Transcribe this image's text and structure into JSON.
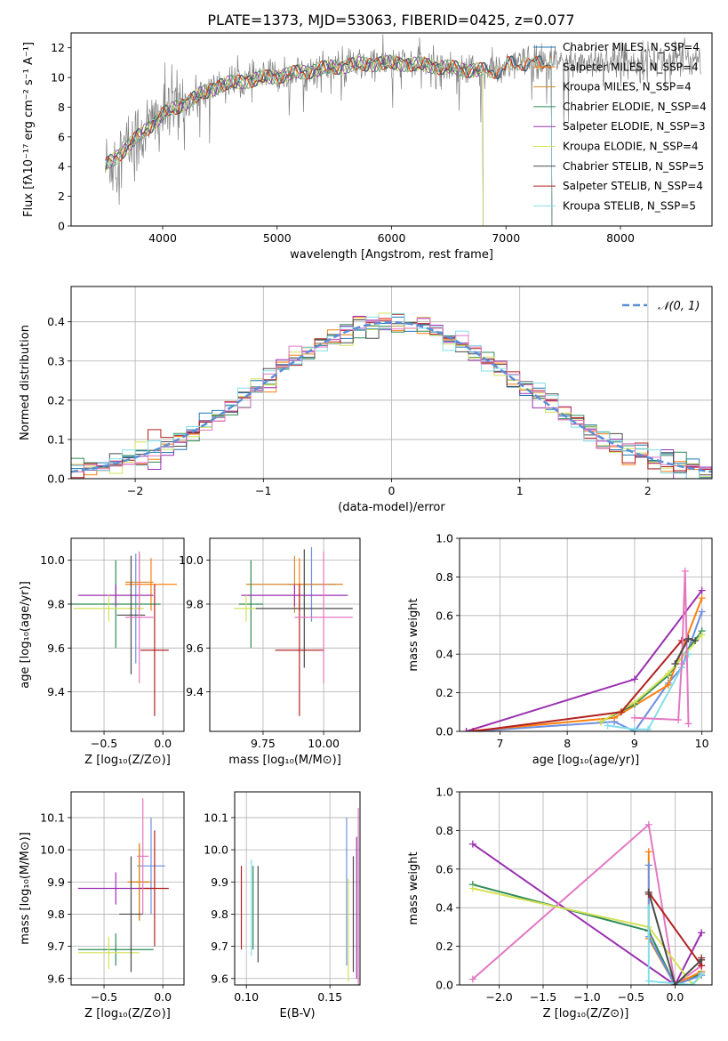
{
  "figure": {
    "title": "PLATE=1373, MJD=53063, FIBERID=0425, z=0.077"
  },
  "chart_data": [
    {
      "type": "line",
      "id": "spectrum",
      "xlabel": "wavelength [Angstrom, rest frame]",
      "ylabel": "Flux [fλ10⁻¹⁷ erg cm⁻² s⁻¹ A⁻¹]",
      "xlim": [
        3200,
        8800
      ],
      "ylim": [
        0,
        13
      ],
      "xticks": [
        4000,
        5000,
        6000,
        7000,
        8000
      ],
      "yticks": [
        0,
        2,
        4,
        6,
        8,
        10,
        12
      ],
      "legend": "upper-right",
      "series": [
        {
          "name": "Chabrier MILES, N_SSP=4",
          "color": "#1f77b4",
          "end": 7400
        },
        {
          "name": "Salpeter MILES, N_SSP=4",
          "color": "#ff7f0e",
          "end": 7400
        },
        {
          "name": "Kroupa MILES, N_SSP=4",
          "color": "#d68a2a",
          "end": 7400
        },
        {
          "name": "Chabrier ELODIE, N_SSP=4",
          "color": "#2e8b57",
          "end": 6800
        },
        {
          "name": "Salpeter ELODIE, N_SSP=3",
          "color": "#9b30b0",
          "end": 6800
        },
        {
          "name": "Kroupa ELODIE, N_SSP=4",
          "color": "#d4e157",
          "end": 6800
        },
        {
          "name": "Chabrier STELIB, N_SSP=5",
          "color": "#4a4a4a",
          "end": 7400
        },
        {
          "name": "Salpeter STELIB, N_SSP=4",
          "color": "#b22222",
          "end": 7400
        },
        {
          "name": "Kroupa STELIB, N_SSP=5",
          "color": "#80deea",
          "end": 7400
        }
      ],
      "data_color": "#808080",
      "data_range": [
        3500,
        8700
      ]
    },
    {
      "type": "histogram",
      "id": "residuals",
      "xlabel": "(data-model)/error",
      "ylabel": "Normed distribution",
      "xlim": [
        -2.5,
        2.5
      ],
      "ylim": [
        0,
        0.49
      ],
      "xticks": [
        -2,
        -1,
        0,
        1,
        2
      ],
      "yticks": [
        0.0,
        0.1,
        0.2,
        0.3,
        0.4
      ],
      "grid": true,
      "legend": "upper-right",
      "reference_label": "𝒩(0, 1)",
      "reference_color": "#5b8fd6"
    },
    {
      "type": "scatter",
      "id": "age-vs-z",
      "xlabel": "Z [log₁₀(Z/Z⊙)]",
      "ylabel": "age  [log₁₀(age/yr)]",
      "xlim": [
        -0.78,
        0.18
      ],
      "ylim": [
        9.22,
        10.1
      ],
      "xticks": [
        -0.5,
        0.0
      ],
      "yticks": [
        9.4,
        9.6,
        9.8,
        10.0
      ],
      "grid": true,
      "points": [
        {
          "x": -0.23,
          "y": 9.78,
          "xerr": 0.05,
          "yerr": 0.25,
          "color": "#6d8fe0"
        },
        {
          "x": -0.1,
          "y": 9.89,
          "xerr": 0.22,
          "yerr": 0.12,
          "color": "#ff7f0e"
        },
        {
          "x": -0.2,
          "y": 9.9,
          "xerr": 0.12,
          "yerr": 0.13,
          "color": "#d68a2a"
        },
        {
          "x": -0.4,
          "y": 9.8,
          "xerr": 0.38,
          "yerr": 0.2,
          "color": "#2e8b57"
        },
        {
          "x": -0.4,
          "y": 9.84,
          "xerr": 0.32,
          "yerr": 0.05,
          "color": "#9b30b0"
        },
        {
          "x": -0.46,
          "y": 9.78,
          "xerr": 0.3,
          "yerr": 0.06,
          "color": "#d4e157"
        },
        {
          "x": -0.27,
          "y": 9.75,
          "xerr": 0.12,
          "yerr": 0.27,
          "color": "#4a4a4a"
        },
        {
          "x": -0.07,
          "y": 9.59,
          "xerr": 0.12,
          "yerr": 0.3,
          "color": "#b22222"
        },
        {
          "x": -0.2,
          "y": 9.74,
          "xerr": 0.12,
          "yerr": 0.3,
          "color": "#e377c2"
        }
      ]
    },
    {
      "type": "scatter",
      "id": "age-vs-mass",
      "xlabel": "mass [log₁₀(M/M⊙)]",
      "ylabel": "",
      "xlim": [
        9.53,
        10.15
      ],
      "ylim": [
        9.22,
        10.1
      ],
      "xticks": [
        9.75,
        10.0
      ],
      "yticks": [
        9.4,
        9.6,
        9.8,
        10.0
      ],
      "grid": true,
      "points": [
        {
          "x": 9.95,
          "y": 9.89,
          "xerr": 0.1,
          "yerr": 0.17,
          "color": "#6d8fe0"
        },
        {
          "x": 9.9,
          "y": 9.89,
          "xerr": 0.02,
          "yerr": 0.12,
          "color": "#ff7f0e"
        },
        {
          "x": 9.88,
          "y": 9.89,
          "xerr": 0.2,
          "yerr": 0.13,
          "color": "#d68a2a"
        },
        {
          "x": 9.7,
          "y": 9.8,
          "xerr": 0.05,
          "yerr": 0.2,
          "color": "#2e8b57"
        },
        {
          "x": 9.88,
          "y": 9.84,
          "xerr": 0.22,
          "yerr": 0.05,
          "color": "#9b30b0"
        },
        {
          "x": 9.68,
          "y": 9.78,
          "xerr": 0.05,
          "yerr": 0.06,
          "color": "#d4e157"
        },
        {
          "x": 9.92,
          "y": 9.78,
          "xerr": 0.2,
          "yerr": 0.27,
          "color": "#4a4a4a"
        },
        {
          "x": 9.9,
          "y": 9.59,
          "xerr": 0.1,
          "yerr": 0.3,
          "color": "#b22222"
        },
        {
          "x": 10.0,
          "y": 9.74,
          "xerr": 0.12,
          "yerr": 0.3,
          "color": "#e377c2"
        }
      ]
    },
    {
      "type": "line",
      "id": "weight-vs-age",
      "xlabel": "age  [log₁₀(age/yr)]",
      "ylabel": "mass weight",
      "xlim": [
        6.4,
        10.15
      ],
      "ylim": [
        0,
        1.0
      ],
      "xticks": [
        7,
        8,
        9,
        10
      ],
      "yticks": [
        0.0,
        0.2,
        0.4,
        0.6,
        0.8,
        1.0
      ],
      "grid": true,
      "series": [
        {
          "color": "#6d8fe0",
          "x": [
            6.6,
            8.7,
            9.0,
            9.5,
            9.7,
            10.0
          ],
          "y": [
            0.0,
            0.05,
            0.0,
            0.25,
            0.33,
            0.62
          ]
        },
        {
          "color": "#ff7f0e",
          "x": [
            6.5,
            8.7,
            9.5,
            10.0
          ],
          "y": [
            0.0,
            0.07,
            0.24,
            0.69
          ]
        },
        {
          "color": "#9b30b0",
          "x": [
            6.5,
            9.0,
            10.0
          ],
          "y": [
            0.0,
            0.27,
            0.73
          ]
        },
        {
          "color": "#2e8b57",
          "x": [
            8.5,
            9.0,
            9.5,
            10.0
          ],
          "y": [
            0.05,
            0.14,
            0.29,
            0.52
          ]
        },
        {
          "color": "#d4e157",
          "x": [
            8.5,
            9.0,
            9.5,
            10.0
          ],
          "y": [
            0.05,
            0.15,
            0.3,
            0.5
          ]
        },
        {
          "color": "#b22222",
          "x": [
            6.6,
            8.8,
            9.7,
            9.8
          ],
          "y": [
            0.0,
            0.1,
            0.47,
            0.48
          ]
        },
        {
          "color": "#80deea",
          "x": [
            8.6,
            9.0,
            9.2,
            9.7,
            9.8
          ],
          "y": [
            0.03,
            0.01,
            0.01,
            0.33,
            0.4
          ]
        },
        {
          "color": "#e377c2",
          "x": [
            9.0,
            9.65,
            9.7,
            9.75,
            9.8
          ],
          "y": [
            0.07,
            0.06,
            0.35,
            0.83,
            0.04
          ]
        },
        {
          "color": "#4a4a4a",
          "x": [
            9.6,
            9.8,
            9.9
          ],
          "y": [
            0.35,
            0.48,
            0.47
          ]
        }
      ]
    },
    {
      "type": "scatter",
      "id": "mass-vs-z",
      "xlabel": "Z [log₁₀(Z/Z⊙)]",
      "ylabel": "mass [log₁₀(M/M⊙)]",
      "xlim": [
        -0.78,
        0.18
      ],
      "ylim": [
        9.58,
        10.18
      ],
      "xticks": [
        -0.5,
        0.0
      ],
      "yticks": [
        9.6,
        9.7,
        9.8,
        9.9,
        10.0,
        10.1
      ],
      "grid": true,
      "points": [
        {
          "x": -0.1,
          "y": 9.95,
          "xerr": 0.12,
          "yerr": 0.15,
          "color": "#6d8fe0"
        },
        {
          "x": -0.2,
          "y": 9.9,
          "xerr": 0.1,
          "yerr": 0.12,
          "color": "#ff7f0e"
        },
        {
          "x": -0.2,
          "y": 9.9,
          "xerr": 0.08,
          "yerr": 0.12,
          "color": "#d68a2a"
        },
        {
          "x": -0.4,
          "y": 9.69,
          "xerr": 0.32,
          "yerr": 0.05,
          "color": "#2e8b57"
        },
        {
          "x": -0.4,
          "y": 9.88,
          "xerr": 0.32,
          "yerr": 0.05,
          "color": "#9b30b0"
        },
        {
          "x": -0.46,
          "y": 9.68,
          "xerr": 0.26,
          "yerr": 0.05,
          "color": "#d4e157"
        },
        {
          "x": -0.27,
          "y": 9.8,
          "xerr": 0.1,
          "yerr": 0.18,
          "color": "#4a4a4a"
        },
        {
          "x": -0.07,
          "y": 9.88,
          "xerr": 0.12,
          "yerr": 0.18,
          "color": "#b22222"
        },
        {
          "x": -0.17,
          "y": 9.98,
          "xerr": 0.05,
          "yerr": 0.18,
          "color": "#e377c2"
        }
      ]
    },
    {
      "type": "errorbar",
      "id": "mass-vs-ebv",
      "xlabel": "E(B-V)",
      "ylabel": "",
      "xlim": [
        0.093,
        0.168
      ],
      "ylim": [
        9.58,
        10.18
      ],
      "xticks": [
        0.1,
        0.15
      ],
      "yticks": [
        9.6,
        9.7,
        9.8,
        9.9,
        10.0,
        10.1
      ],
      "grid": true,
      "points": [
        {
          "x": 0.097,
          "y": 9.82,
          "yerr": 0.13,
          "color": "#b22222"
        },
        {
          "x": 0.103,
          "y": 9.82,
          "yerr": 0.15,
          "color": "#80deea"
        },
        {
          "x": 0.104,
          "y": 9.82,
          "yerr": 0.13,
          "color": "#2e8b57"
        },
        {
          "x": 0.107,
          "y": 9.8,
          "yerr": 0.15,
          "color": "#4a4a4a"
        },
        {
          "x": 0.16,
          "y": 9.87,
          "yerr": 0.23,
          "color": "#6d8fe0"
        },
        {
          "x": 0.161,
          "y": 9.75,
          "yerr": 0.16,
          "color": "#d4e157"
        },
        {
          "x": 0.164,
          "y": 9.8,
          "yerr": 0.18,
          "color": "#4a4a4a"
        },
        {
          "x": 0.166,
          "y": 9.82,
          "yerr": 0.22,
          "color": "#9b30b0"
        },
        {
          "x": 0.167,
          "y": 9.85,
          "yerr": 0.28,
          "color": "#e377c2"
        }
      ]
    },
    {
      "type": "line",
      "id": "weight-vs-z",
      "xlabel": "Z [log₁₀(Z/Z⊙)]",
      "ylabel": "mass weight",
      "xlim": [
        -2.45,
        0.42
      ],
      "ylim": [
        0,
        1.0
      ],
      "xticks": [
        -2.0,
        -1.5,
        -1.0,
        -0.5,
        0.0
      ],
      "yticks": [
        0.0,
        0.2,
        0.4,
        0.6,
        0.8,
        1.0
      ],
      "grid": true,
      "series": [
        {
          "color": "#9b30b0",
          "x": [
            -2.3,
            0.0,
            0.3,
            0.3
          ],
          "y": [
            0.73,
            0.0,
            0.27,
            0.27
          ]
        },
        {
          "color": "#e377c2",
          "x": [
            -2.3,
            -0.3,
            0.0,
            0.3
          ],
          "y": [
            0.03,
            0.83,
            0.0,
            0.1
          ]
        },
        {
          "color": "#2e8b57",
          "x": [
            -2.3,
            -0.3,
            0.0,
            0.3
          ],
          "y": [
            0.52,
            0.28,
            0.0,
            0.06
          ]
        },
        {
          "color": "#d4e157",
          "x": [
            -2.3,
            -0.3,
            0.2,
            0.3
          ],
          "y": [
            0.5,
            0.3,
            0.0,
            0.05
          ]
        },
        {
          "color": "#ff7f0e",
          "x": [
            -0.3,
            -0.3,
            0.0,
            0.3
          ],
          "y": [
            0.69,
            0.24,
            0.0,
            0.07
          ]
        },
        {
          "color": "#6d8fe0",
          "x": [
            -0.3,
            -0.3,
            0.0,
            0.3
          ],
          "y": [
            0.62,
            0.25,
            0.0,
            0.05
          ]
        },
        {
          "color": "#b22222",
          "x": [
            -0.3,
            -0.3,
            0.3,
            0.3
          ],
          "y": [
            0.47,
            0.48,
            0.1,
            0.14
          ]
        },
        {
          "color": "#80deea",
          "x": [
            -0.3,
            -0.3,
            0.2,
            0.3
          ],
          "y": [
            0.4,
            0.02,
            0.0,
            0.06
          ]
        },
        {
          "color": "#4a4a4a",
          "x": [
            -0.3,
            0.0,
            0.3
          ],
          "y": [
            0.48,
            0.0,
            0.13
          ]
        }
      ]
    }
  ]
}
